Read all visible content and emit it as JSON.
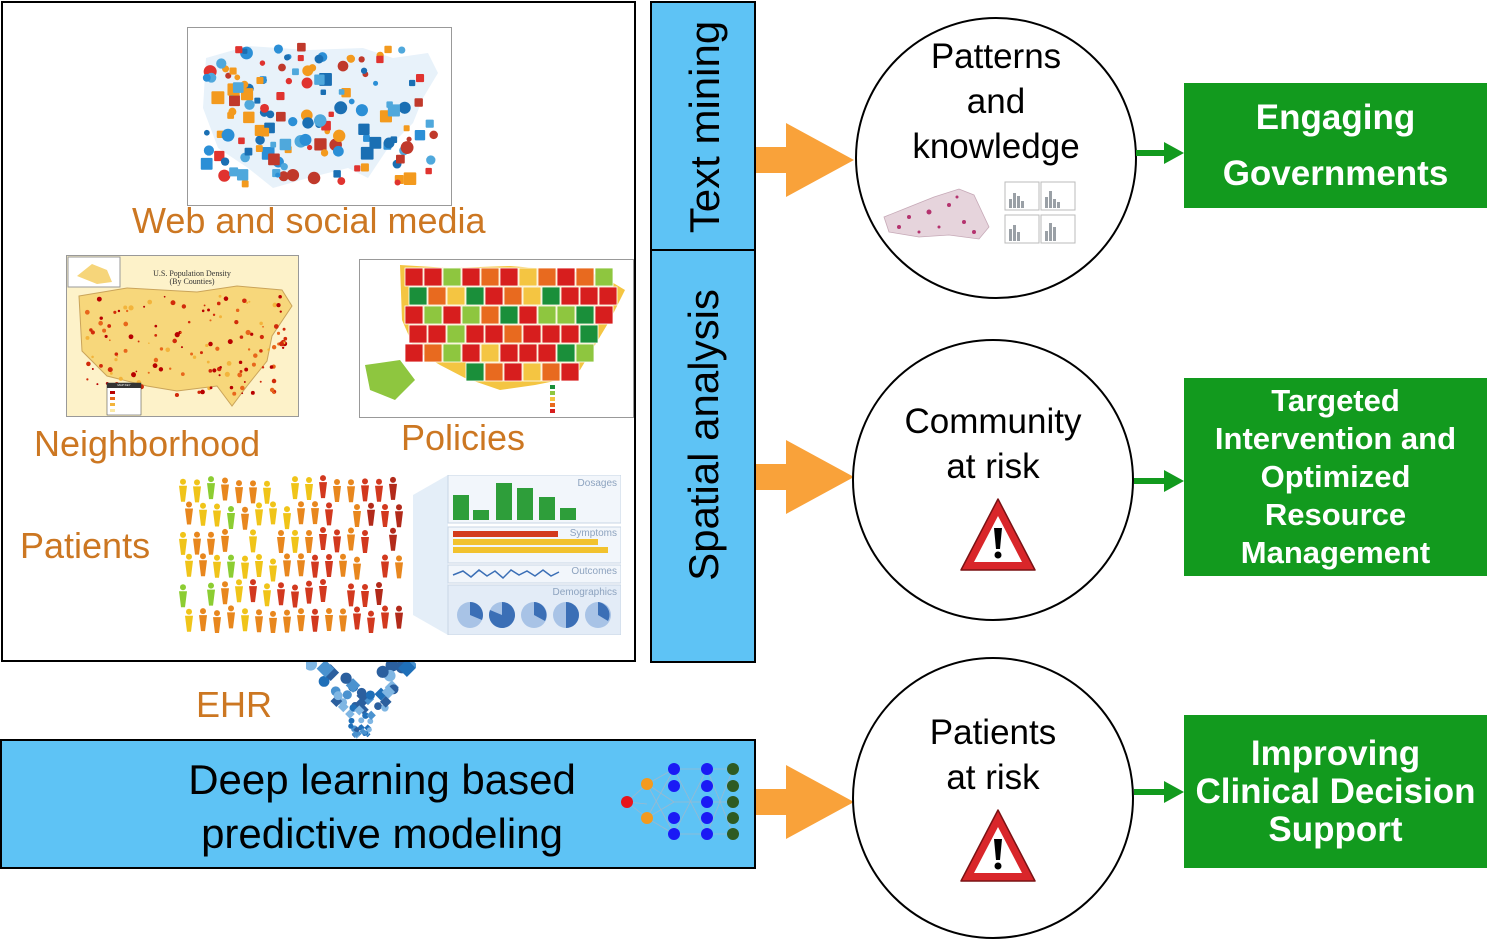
{
  "sources": {
    "web_label": "Web and social media",
    "neighborhood_label": "Neighborhood",
    "policies_label": "Policies",
    "patients_label": "Patients",
    "ehr_label": "EHR",
    "density_map_title": "U.S. Population Density",
    "density_map_subtitle": "(By Counties)",
    "density_legend_title": "MAP KEY",
    "dashboard_labels": [
      "Dosages",
      "Symptoms",
      "Outcomes",
      "Demographics"
    ]
  },
  "methods": {
    "text_mining": "Text mining",
    "spatial_analysis": "Spatial analysis",
    "deep_learning_line1": "Deep learning based",
    "deep_learning_line2": "predictive modeling"
  },
  "outcomes": {
    "patterns": [
      "Patterns",
      "and",
      "knowledge"
    ],
    "community": [
      "Community",
      "at risk"
    ],
    "patients": [
      "Patients",
      "at risk"
    ]
  },
  "impacts": {
    "engaging": [
      "Engaging",
      "Governments"
    ],
    "targeted": [
      "Targeted",
      "Intervention and",
      "Optimized",
      "Resource",
      "Management"
    ],
    "clinical": [
      "Improving",
      "Clinical Decision",
      "Support"
    ]
  },
  "colors": {
    "source_label": "#cc7722",
    "method_band": "#5ec3f5",
    "impact_box": "#129a1e",
    "arrow_orange": "#f9a23a",
    "arrow_green": "#129a1e",
    "warning_red": "#d9262a"
  }
}
